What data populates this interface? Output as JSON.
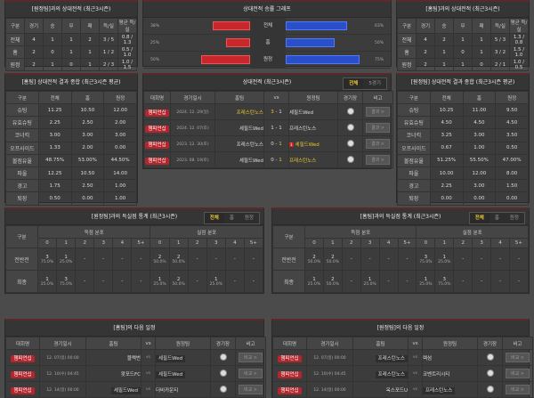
{
  "h2h_left": {
    "title": "[원정팀]과의 상대전적 (최근3시즌)",
    "headers": [
      "구분",
      "경기",
      "승",
      "무",
      "패",
      "득/실",
      "평균 득/실"
    ],
    "rows": [
      [
        "전체",
        "4",
        "1",
        "1",
        "2",
        "3 / 5",
        "0.8 / 1.3"
      ],
      [
        "홈",
        "2",
        "0",
        "1",
        "1",
        "1 / 2",
        "0.5 / 1.0"
      ],
      [
        "원정",
        "2",
        "1",
        "0",
        "1",
        "2 / 3",
        "1.0 / 1.5"
      ]
    ]
  },
  "h2h_right": {
    "title": "[홈팀]과의 상대전적 (최근3시즌)",
    "headers": [
      "구분",
      "경기",
      "승",
      "무",
      "패",
      "득/실",
      "평균 득/실"
    ],
    "rows": [
      [
        "전체",
        "4",
        "2",
        "1",
        "1",
        "5 / 3",
        "1.3 / 0.8"
      ],
      [
        "홈",
        "2",
        "1",
        "0",
        "1",
        "3 / 2",
        "1.5 / 1.0"
      ],
      [
        "원정",
        "2",
        "1",
        "1",
        "0",
        "2 / 1",
        "1.0 / 0.5"
      ]
    ]
  },
  "graph": {
    "title": "상대전적 승률 그래프",
    "red_color": "#c8282c",
    "blue_color": "#2a50c8",
    "rows": [
      {
        "label": "전체",
        "left": "38%",
        "left_value": 38,
        "right": "63%",
        "right_value": 63
      },
      {
        "label": "홈",
        "left": "25%",
        "left_value": 25,
        "right": "50%",
        "right_value": 50
      },
      {
        "label": "원정",
        "left": "50%",
        "left_value": 50,
        "right": "75%",
        "right_value": 75
      }
    ]
  },
  "stats_left": {
    "title": "[홈팀] 상대전적 결과 종합 (최근3시즌 평균)",
    "headers": [
      "구분",
      "전체",
      "홈",
      "원정"
    ],
    "rows": [
      [
        "슈팅",
        "11.25",
        "10.50",
        "12.00"
      ],
      [
        "유효슈팅",
        "2.25",
        "2.50",
        "2.00"
      ],
      [
        "코너킥",
        "3.00",
        "3.00",
        "3.00"
      ],
      [
        "오프사이드",
        "1.33",
        "2.00",
        "0.00"
      ],
      [
        "볼점유율",
        "48.75%",
        "53.00%",
        "44.50%"
      ],
      [
        "파울",
        "12.25",
        "10.50",
        "14.00"
      ],
      [
        "경고",
        "1.75",
        "2.50",
        "1.00"
      ],
      [
        "퇴장",
        "0.50",
        "0.00",
        "1.00"
      ]
    ]
  },
  "stats_right": {
    "title": "[원정팀] 상대전적 결과 종합 (최근3시즌 평균)",
    "headers": [
      "구분",
      "전체",
      "홈",
      "원정"
    ],
    "rows": [
      [
        "슈팅",
        "10.25",
        "11.00",
        "9.50"
      ],
      [
        "유효슈팅",
        "4.50",
        "4.50",
        "4.50"
      ],
      [
        "코너킥",
        "3.25",
        "3.00",
        "3.50"
      ],
      [
        "오프사이드",
        "0.67",
        "1.00",
        "0.50"
      ],
      [
        "볼점유율",
        "51.25%",
        "55.50%",
        "47.00%"
      ],
      [
        "파울",
        "10.00",
        "12.00",
        "8.00"
      ],
      [
        "경고",
        "2.25",
        "3.00",
        "1.50"
      ],
      [
        "퇴장",
        "0.00",
        "0.00",
        "0.00"
      ]
    ]
  },
  "recent": {
    "title": "상대전적 (최근3시즌)",
    "tabs": [
      "전체",
      "5경기"
    ],
    "headers": [
      "대회명",
      "경기일시",
      "홈팀",
      "vs",
      "원정팀",
      "경기장",
      "비고"
    ],
    "matches": [
      {
        "league": "챔피언십",
        "date": "2024. 12. 29(일)",
        "home": "프레스턴노스",
        "hs": "3",
        "as": "1",
        "away": "셰필드Wed",
        "winner": "home",
        "red": "",
        "btn": "결과 >"
      },
      {
        "league": "챔피언십",
        "date": "2024. 12. 07(토)",
        "home": "셰필드Wed",
        "hs": "1",
        "as": "1",
        "away": "프레스턴노스",
        "winner": "",
        "red": "",
        "btn": "결과 >"
      },
      {
        "league": "챔피언십",
        "date": "2023. 12. 30(토)",
        "home": "프레스턴노스",
        "hs": "0",
        "as": "1",
        "away": "셰필드Wed",
        "winner": "away",
        "red": "1",
        "btn": "결과 >"
      },
      {
        "league": "챔피언십",
        "date": "2023. 08. 19(토)",
        "home": "셰필드Wed",
        "hs": "0",
        "as": "1",
        "away": "프레스턴노스",
        "winner": "away",
        "red": "",
        "btn": "결과 >"
      }
    ]
  },
  "goals_left": {
    "title": "[원정팀]과의 득실점 통계 (최근3시즌)",
    "tabs": [
      "전체",
      "홈",
      "원정"
    ],
    "group_header": "구분",
    "scored": "득점 분포",
    "conceded": "실점 분포",
    "cols": [
      "0",
      "1",
      "2",
      "3",
      "4",
      "5+"
    ],
    "rows": [
      {
        "label": "전반전",
        "cells": [
          [
            "3",
            "75.0%"
          ],
          [
            "1",
            "25.0%"
          ],
          [
            "-",
            ""
          ],
          [
            "-",
            ""
          ],
          [
            "-",
            ""
          ],
          [
            "-",
            ""
          ],
          [
            "2",
            "50.0%"
          ],
          [
            "2",
            "50.0%"
          ],
          [
            "-",
            ""
          ],
          [
            "-",
            ""
          ],
          [
            "-",
            ""
          ],
          [
            "-",
            ""
          ]
        ]
      },
      {
        "label": "최종",
        "cells": [
          [
            "1",
            "25.0%"
          ],
          [
            "3",
            "75.0%"
          ],
          [
            "-",
            ""
          ],
          [
            "-",
            ""
          ],
          [
            "-",
            ""
          ],
          [
            "-",
            ""
          ],
          [
            "1",
            "25.0%"
          ],
          [
            "2",
            "50.0%"
          ],
          [
            "-",
            ""
          ],
          [
            "1",
            "25.0%"
          ],
          [
            "-",
            ""
          ],
          [
            "-",
            ""
          ]
        ]
      }
    ]
  },
  "goals_right": {
    "title": "[홈팀]과의 득실점 통계 (최근3시즌)",
    "tabs": [
      "전체",
      "홈",
      "원정"
    ],
    "group_header": "구분",
    "scored": "득점 분포",
    "conceded": "실점 분포",
    "cols": [
      "0",
      "1",
      "2",
      "3",
      "4",
      "5+"
    ],
    "rows": [
      {
        "label": "전반전",
        "cells": [
          [
            "2",
            "50.0%"
          ],
          [
            "2",
            "50.0%"
          ],
          [
            "-",
            ""
          ],
          [
            "-",
            ""
          ],
          [
            "-",
            ""
          ],
          [
            "-",
            ""
          ],
          [
            "3",
            "75.0%"
          ],
          [
            "1",
            "25.0%"
          ],
          [
            "-",
            ""
          ],
          [
            "-",
            ""
          ],
          [
            "-",
            ""
          ],
          [
            "-",
            ""
          ]
        ]
      },
      {
        "label": "최종",
        "cells": [
          [
            "1",
            "25.0%"
          ],
          [
            "2",
            "50.0%"
          ],
          [
            "-",
            ""
          ],
          [
            "1",
            "25.0%"
          ],
          [
            "-",
            ""
          ],
          [
            "-",
            ""
          ],
          [
            "1",
            "25.0%"
          ],
          [
            "3",
            "75.0%"
          ],
          [
            "-",
            ""
          ],
          [
            "-",
            ""
          ],
          [
            "-",
            ""
          ],
          [
            "-",
            ""
          ]
        ]
      }
    ]
  },
  "next_left": {
    "title": "[홈팀]의 다음 일정",
    "headers": [
      "대회명",
      "경기일시",
      "홈팀",
      "vs",
      "원정팀",
      "경기장",
      "비고"
    ],
    "matches": [
      {
        "league": "챔피언십",
        "date": "12. 07(일) 00:00",
        "home": "블랙번",
        "away": "셰필드Wed",
        "mark": "away",
        "btn": "비교 >"
      },
      {
        "league": "챔피언십",
        "date": "12. 10(수) 04:45",
        "home": "왓포드FC",
        "away": "셰필드Wed",
        "mark": "away",
        "btn": "비교 >"
      },
      {
        "league": "챔피언십",
        "date": "12. 14(일) 00:00",
        "home": "셰필드Wed",
        "away": "더비카운티",
        "mark": "home",
        "btn": "비교 >"
      }
    ]
  },
  "next_right": {
    "title": "[원정팀]의 다음 일정",
    "headers": [
      "대회명",
      "경기일시",
      "홈팀",
      "vs",
      "원정팀",
      "경기장",
      "비고"
    ],
    "matches": [
      {
        "league": "챔피언십",
        "date": "12. 07(일) 00:00",
        "home": "프레스턴노스",
        "away": "렉섬",
        "mark": "home",
        "btn": "비교 >"
      },
      {
        "league": "챔피언십",
        "date": "12. 10(수) 04:45",
        "home": "프레스턴노스",
        "away": "코벤트리시티",
        "mark": "home",
        "btn": "비교 >"
      },
      {
        "league": "챔피언십",
        "date": "12. 14(일) 00:00",
        "home": "옥스포드U",
        "away": "프레스턴노스",
        "mark": "away",
        "btn": "비교 >"
      }
    ]
  },
  "vs_label": "vs"
}
